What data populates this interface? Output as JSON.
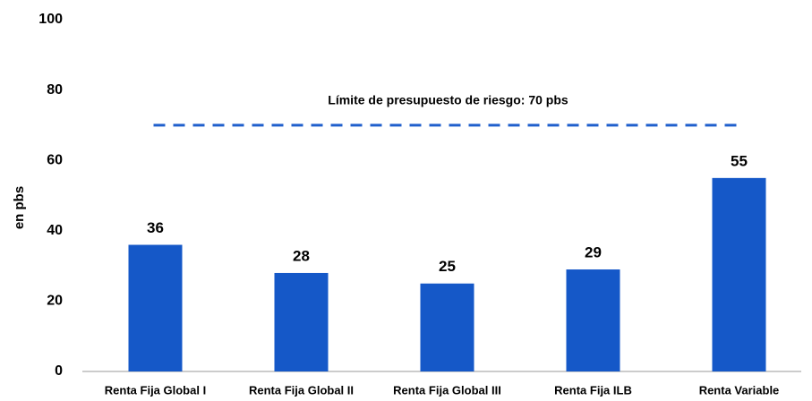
{
  "chart_data": {
    "type": "bar",
    "y_label": "en pbs",
    "categories": [
      "Renta Fija Global I",
      "Renta Fija Global II",
      "Renta Fija Global III",
      "Renta Fija ILB",
      "Renta Variable"
    ],
    "values": [
      36,
      28,
      25,
      29,
      55
    ],
    "color": "#1558c8",
    "ylim": [
      0,
      100
    ],
    "yticks": [
      0,
      20,
      40,
      60,
      80,
      100
    ],
    "grid": false,
    "reference_line": {
      "value": 70,
      "label": "Límite de presupuesto de riesgo: 70 pbs",
      "color": "#1f5fcc",
      "dashed": true
    }
  }
}
